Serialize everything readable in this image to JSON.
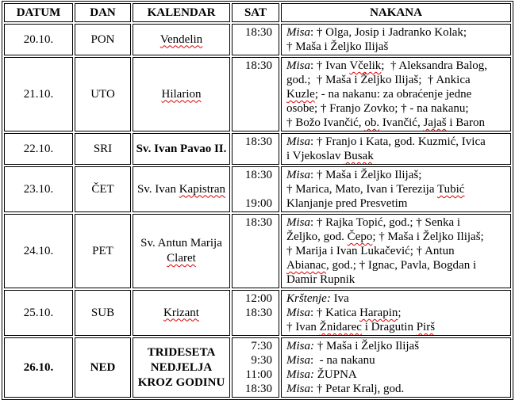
{
  "table": {
    "headers": [
      "DATUM",
      "DAN",
      "KALENDAR",
      "SAT",
      "NAKANA"
    ],
    "rows": [
      {
        "datum": "20.10.",
        "dan": "PON",
        "bold": false,
        "kalendar": [
          [
            {
              "t": "Vendelin",
              "sq": true
            }
          ]
        ],
        "sat": [
          "18:30"
        ],
        "nakana": [
          [
            {
              "t": "Misa",
              "i": true
            },
            {
              "t": ": † Olga, Josip i Jadranko Kolak;"
            }
          ],
          [
            {
              "t": "† Maša i Željko Ilijaš"
            }
          ]
        ]
      },
      {
        "datum": "21.10.",
        "dan": "UTO",
        "bold": false,
        "kalendar": [
          [
            {
              "t": "Hilarion",
              "sq": true
            }
          ]
        ],
        "sat": [
          "18:30"
        ],
        "nakana": [
          [
            {
              "t": "Misa",
              "i": true
            },
            {
              "t": ": † Ivan "
            },
            {
              "t": "Včelik",
              "sq": true
            },
            {
              "t": ";  † Aleksandra Balog,"
            }
          ],
          [
            {
              "t": "god.;  † Maša i Željko Ilijaš;  † Ankica"
            }
          ],
          [
            {
              "t": "Kuzle",
              "sq": true
            },
            {
              "t": "; - na nakanu: za obraćenje jedne"
            }
          ],
          [
            {
              "t": "osobe; † Franjo Zovko; † - na nakanu;"
            }
          ],
          [
            {
              "t": "† Božo Ivančić, "
            },
            {
              "t": "ob.",
              "sq": true
            },
            {
              "t": " Ivančić, "
            },
            {
              "t": "Jajaš",
              "sq": true
            },
            {
              "t": " i Baron"
            }
          ]
        ]
      },
      {
        "datum": "22.10.",
        "dan": "SRI",
        "bold": false,
        "kalendar": [
          [
            {
              "t": "Sv. Ivan Pavao II.",
              "b": true
            }
          ]
        ],
        "sat": [
          "18:30"
        ],
        "nakana": [
          [
            {
              "t": "Misa",
              "i": true
            },
            {
              "t": ": † Franjo i Kata, god. Kuzmić, Ivica"
            }
          ],
          [
            {
              "t": "i Vjekoslav "
            },
            {
              "t": "Busak",
              "sq": true
            }
          ]
        ]
      },
      {
        "datum": "23.10.",
        "dan": "ČET",
        "bold": false,
        "kalendar": [
          [
            {
              "t": "Sv. Ivan "
            },
            {
              "t": "Kapistran",
              "sq": true
            }
          ]
        ],
        "sat": [
          "18:30",
          "",
          "19:00"
        ],
        "nakana": [
          [
            {
              "t": "Misa",
              "i": true
            },
            {
              "t": ": † Maša i Željko Ilijaš;"
            }
          ],
          [
            {
              "t": "† Marica, Mato, Ivan i Terezija "
            },
            {
              "t": "Tubić",
              "sq": true
            }
          ],
          [
            {
              "t": "Klanjanje pred Presvetim"
            }
          ]
        ]
      },
      {
        "datum": "24.10.",
        "dan": "PET",
        "bold": false,
        "kalendar": [
          [
            {
              "t": "Sv. Antun Marija"
            }
          ],
          [
            {
              "t": "Claret",
              "sq": true
            }
          ]
        ],
        "sat": [
          "18:30"
        ],
        "nakana": [
          [
            {
              "t": "Misa",
              "i": true
            },
            {
              "t": ": † Rajka Topić, god.; † Senka i"
            }
          ],
          [
            {
              "t": "Željko, god. "
            },
            {
              "t": "Čepo",
              "sq": true
            },
            {
              "t": "; † Maša i Željko Ilijaš;"
            }
          ],
          [
            {
              "t": "† Marija i Ivan Lukačević; † Antun"
            }
          ],
          [
            {
              "t": "Abianac",
              "sq": true
            },
            {
              "t": ", god.; † Ignac, Pavla, Bogdan i"
            }
          ],
          [
            {
              "t": "Damir Rupnik"
            }
          ]
        ]
      },
      {
        "datum": "25.10.",
        "dan": "SUB",
        "bold": false,
        "kalendar": [
          [
            {
              "t": "Krizant",
              "sq": true
            }
          ]
        ],
        "sat": [
          "12:00",
          "18:30"
        ],
        "nakana": [
          [
            {
              "t": "Krštenje:",
              "i": true
            },
            {
              "t": " Iva"
            }
          ],
          [
            {
              "t": "Misa",
              "i": true
            },
            {
              "t": ": † Katica "
            },
            {
              "t": "Harapin",
              "sq": true
            },
            {
              "t": ";"
            }
          ],
          [
            {
              "t": "† Ivan "
            },
            {
              "t": "Žnidarec",
              "sq": true
            },
            {
              "t": " i Dragutin "
            },
            {
              "t": "Pirš",
              "sq": true
            }
          ]
        ]
      },
      {
        "datum": "26.10.",
        "dan": "NED",
        "bold": true,
        "kalendar": [
          [
            {
              "t": "TRIDESETA",
              "b": true
            }
          ],
          [
            {
              "t": "NEDJELJA",
              "b": true
            }
          ],
          [
            {
              "t": "KROZ GODINU",
              "b": true
            }
          ]
        ],
        "sat": [
          "7:30",
          "9:30",
          "11:00",
          "18:30"
        ],
        "nakana": [
          [
            {
              "t": "Misa:",
              "i": true
            },
            {
              "t": " † Maša i Željko Ilijaš"
            }
          ],
          [
            {
              "t": "Misa",
              "i": true
            },
            {
              "t": ":  - na nakanu"
            }
          ],
          [
            {
              "t": "Misa:",
              "i": true
            },
            {
              "t": " ŽUPNA"
            }
          ],
          [
            {
              "t": "Misa",
              "i": true
            },
            {
              "t": ": † Petar Kralj, god."
            }
          ]
        ]
      }
    ]
  }
}
